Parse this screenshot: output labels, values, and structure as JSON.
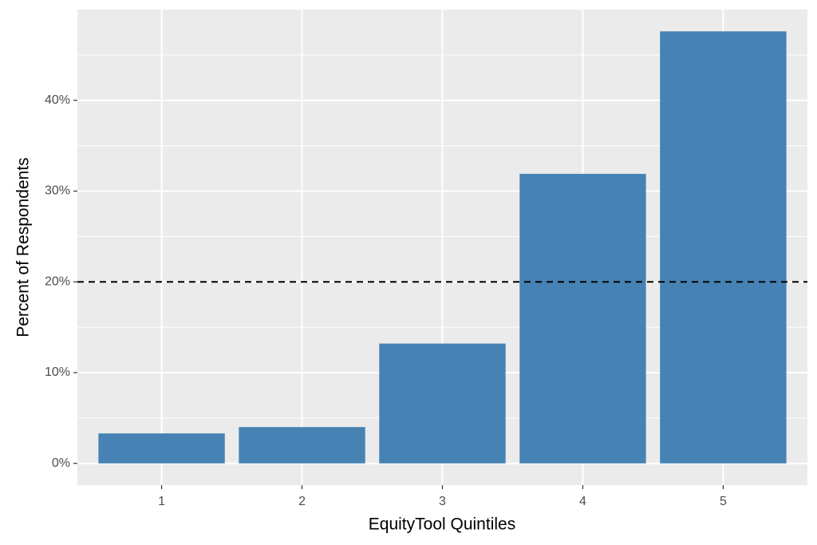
{
  "chart_data": {
    "type": "bar",
    "x_label": "EquityTool Quintiles",
    "y_label": "Percent of Respondents",
    "categories": [
      "1",
      "2",
      "3",
      "4",
      "5"
    ],
    "values": [
      3.3,
      4.0,
      13.2,
      31.9,
      47.6
    ],
    "color": "#4682b4",
    "ylim": [
      -2.4,
      50.0
    ],
    "yticks": [
      {
        "value": 0,
        "label": "0%"
      },
      {
        "value": 10,
        "label": "10%"
      },
      {
        "value": 20,
        "label": "20%"
      },
      {
        "value": 30,
        "label": "30%"
      },
      {
        "value": 40,
        "label": "40%"
      }
    ],
    "minor_yticks": [
      5,
      15,
      25,
      35,
      45
    ],
    "reference_line": {
      "value": 20,
      "style": "dashed",
      "color": "#000000"
    },
    "grid": true
  }
}
